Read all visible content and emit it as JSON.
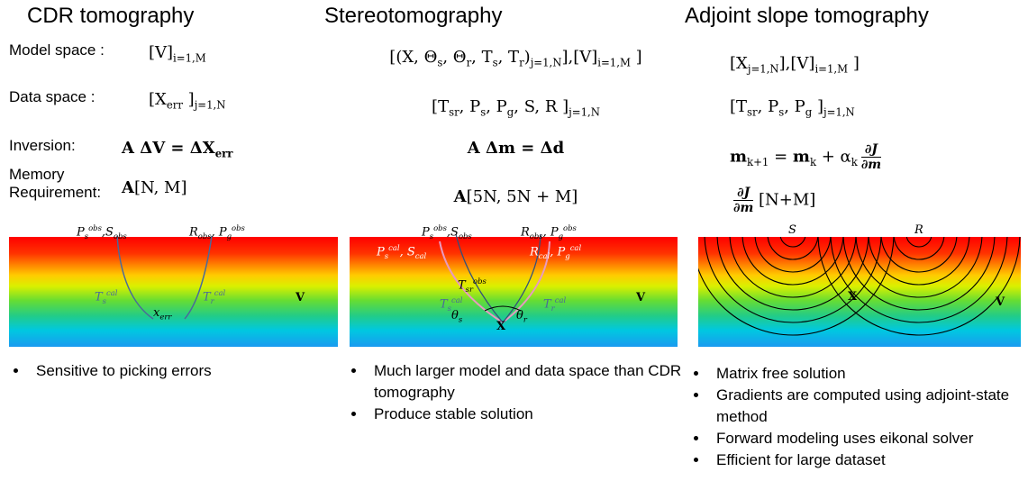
{
  "columns": [
    {
      "title": "CDR tomography",
      "rows": [
        {
          "label": "Model space :",
          "expr": [
            {
              "t": "[V]"
            },
            {
              "sub": "i=1,M"
            }
          ]
        },
        {
          "label": "Data space :",
          "expr": [
            {
              "t": "[X"
            },
            {
              "sub": "err"
            },
            {
              "t": " ]"
            },
            {
              "sub": "j=1,N"
            }
          ]
        },
        {
          "label": "Inversion:",
          "expr": [
            {
              "t": "A ΔV = ΔX",
              "bold": true
            },
            {
              "sub": "err",
              "bold": true
            }
          ]
        },
        {
          "label": "Memory Requirement:",
          "expr": [
            {
              "t": "A",
              "bold": true
            },
            {
              "t": "[N, M]"
            }
          ]
        }
      ],
      "panel_labels": [
        [
          {
            "t": "P"
          },
          {
            "sub": "s"
          },
          {
            "sup": "obs"
          },
          {
            "t": ",S"
          },
          {
            "sub": "obs"
          }
        ],
        [
          {
            "t": "R"
          },
          {
            "sub": "obs"
          },
          {
            "t": ", P"
          },
          {
            "sub": "g"
          },
          {
            "sup": "obs"
          }
        ],
        [
          {
            "t": "T"
          },
          {
            "sub": "s"
          },
          {
            "sup": "cal"
          }
        ],
        [
          {
            "t": "T"
          },
          {
            "sub": "r"
          },
          {
            "sup": "cal"
          }
        ],
        [
          {
            "t": "x"
          },
          {
            "sub": "err"
          }
        ],
        [
          {
            "t": "V"
          }
        ]
      ],
      "bullets": [
        "Sensitive to picking errors"
      ]
    },
    {
      "title": "Stereotomography",
      "rows": [
        {
          "expr": [
            {
              "t": "[(X, Θ"
            },
            {
              "sub": "s"
            },
            {
              "t": ", Θ"
            },
            {
              "sub": "r"
            },
            {
              "t": ", T"
            },
            {
              "sub": "s"
            },
            {
              "t": ", T"
            },
            {
              "sub": "r"
            },
            {
              "t": ")"
            },
            {
              "sub": "j=1,N"
            },
            {
              "t": "],[V]"
            },
            {
              "sub": "i=1,M"
            },
            {
              "t": " ]"
            }
          ]
        },
        {
          "expr": [
            {
              "t": "[T"
            },
            {
              "sub": "sr"
            },
            {
              "t": ", P"
            },
            {
              "sub": "s"
            },
            {
              "t": ", P"
            },
            {
              "sub": "g"
            },
            {
              "t": ", S, R ]"
            },
            {
              "sub": "j=1,N"
            }
          ]
        },
        {
          "expr": [
            {
              "t": "A Δm = Δd",
              "bold": true
            }
          ]
        },
        {
          "expr": [
            {
              "t": "A",
              "bold": true
            },
            {
              "t": "[5N, 5N + M]"
            }
          ]
        }
      ],
      "panel_labels": [
        [
          {
            "t": "P"
          },
          {
            "sub": "s"
          },
          {
            "sup": "obs"
          },
          {
            "t": ",S"
          },
          {
            "sub": "obs"
          }
        ],
        [
          {
            "t": "R"
          },
          {
            "sub": "obs"
          },
          {
            "t": ", P"
          },
          {
            "sub": "g"
          },
          {
            "sup": "obs"
          }
        ],
        [
          {
            "t": "P"
          },
          {
            "sub": "s"
          },
          {
            "sup": "cal"
          },
          {
            "t": ", S"
          },
          {
            "sub": "cal"
          }
        ],
        [
          {
            "t": "R"
          },
          {
            "sub": "cal"
          },
          {
            "t": ", P"
          },
          {
            "sub": "g"
          },
          {
            "sup": "cal"
          }
        ],
        [
          {
            "t": "T"
          },
          {
            "sub": "sr"
          },
          {
            "sup": "obs"
          }
        ],
        [
          {
            "t": "T"
          },
          {
            "sub": "s"
          },
          {
            "sup": "cal"
          }
        ],
        [
          {
            "t": "T"
          },
          {
            "sub": "r"
          },
          {
            "sup": "cal"
          }
        ],
        [
          {
            "t": "θ"
          },
          {
            "sub": "s"
          }
        ],
        [
          {
            "t": "θ"
          },
          {
            "sub": "r"
          }
        ],
        [
          {
            "t": "X"
          }
        ],
        [
          {
            "t": "V"
          }
        ]
      ],
      "bullets": [
        "Much larger model and data space than CDR tomography",
        "Produce stable solution"
      ]
    },
    {
      "title": "Adjoint slope tomography",
      "rows": [
        {
          "expr": [
            {
              "t": "[X"
            },
            {
              "sub": "j=1,N"
            },
            {
              "t": "],[V]"
            },
            {
              "sub": "i=1,M"
            },
            {
              "t": " ]"
            }
          ]
        },
        {
          "expr": [
            {
              "t": "[T"
            },
            {
              "sub": "sr"
            },
            {
              "t": ", P"
            },
            {
              "sub": "s"
            },
            {
              "t": ", P"
            },
            {
              "sub": "g"
            },
            {
              "t": " ]"
            },
            {
              "sub": "j=1,N"
            }
          ]
        },
        {
          "expr": [
            {
              "t": "m",
              "bold": true
            },
            {
              "sub": "k+1"
            },
            {
              "t": " = "
            },
            {
              "t": "m",
              "bold": true
            },
            {
              "sub": "k"
            },
            {
              "t": " + α"
            },
            {
              "sub": "k"
            },
            {
              "num": "∂J",
              "den": "∂m"
            }
          ]
        },
        {
          "expr": [
            {
              "num": "∂J",
              "den": "∂m"
            },
            {
              "t": " [N+M]"
            }
          ]
        }
      ],
      "panel_labels": [
        [
          {
            "t": "S"
          }
        ],
        [
          {
            "t": "R"
          }
        ],
        [
          {
            "t": "X"
          }
        ],
        [
          {
            "t": "V"
          }
        ]
      ],
      "bullets": [
        "Matrix free solution",
        "Gradients are computed using adjoint-state method",
        "Forward modeling uses eikonal solver",
        "Efficient for large dataset"
      ]
    }
  ]
}
